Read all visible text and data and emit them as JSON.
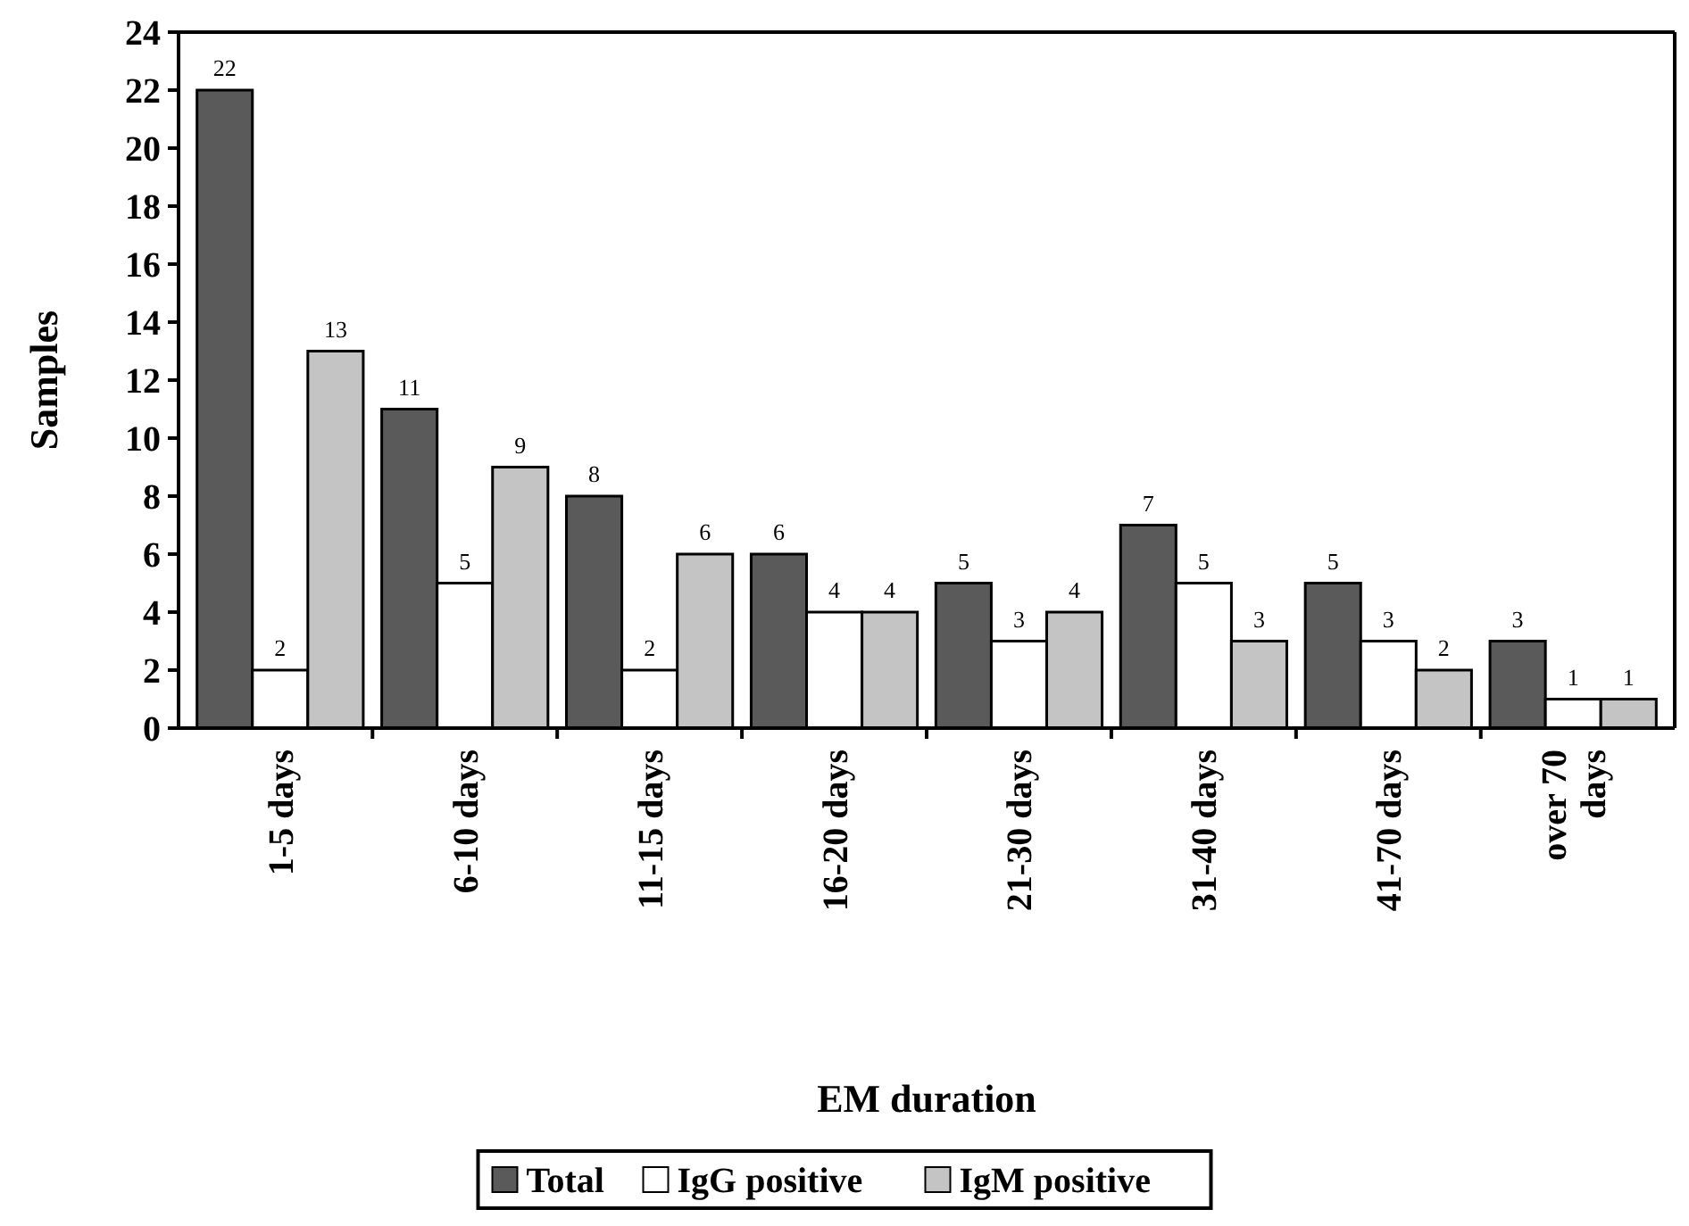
{
  "chart_data": {
    "type": "bar",
    "xlabel": "EM duration",
    "ylabel": "Samples",
    "categories": [
      "1-5 days",
      "6-10 days",
      "11-15 days",
      "16-20 days",
      "21-30 days",
      "31-40 days",
      "41-70 days",
      "over 70 days"
    ],
    "series": [
      {
        "name": "Total",
        "color": "#5a5a5a",
        "values": [
          22,
          11,
          8,
          6,
          5,
          7,
          5,
          3
        ]
      },
      {
        "name": "IgG positive",
        "color": "#ffffff",
        "values": [
          2,
          5,
          2,
          4,
          3,
          5,
          3,
          1
        ]
      },
      {
        "name": "IgM positive",
        "color": "#c4c4c4",
        "values": [
          13,
          9,
          6,
          4,
          4,
          3,
          2,
          1
        ]
      }
    ],
    "ylim": [
      0,
      24
    ],
    "yticks": [
      0,
      2,
      4,
      6,
      8,
      10,
      12,
      14,
      16,
      18,
      20,
      22,
      24
    ],
    "data_labels": true,
    "legend": "bottom",
    "grid": false
  }
}
